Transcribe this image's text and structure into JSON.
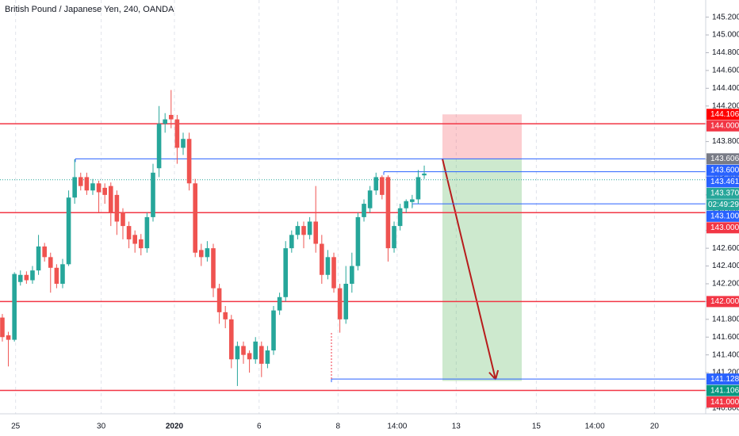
{
  "chart_data": {
    "type": "candlestick",
    "title": "British Pound / Japanese Yen, 240, OANDA",
    "up_color": "#26a69a",
    "down_color": "#ef5350",
    "x": [
      0,
      1,
      2,
      3,
      4,
      5,
      6,
      7,
      8,
      9,
      10,
      11,
      12,
      13,
      14,
      15,
      16,
      17,
      18,
      19,
      20,
      21,
      22,
      23,
      24,
      25,
      26,
      27,
      28,
      29,
      30,
      31,
      32,
      33,
      34,
      35,
      36,
      37,
      38,
      39,
      40,
      41,
      42,
      43,
      44,
      45,
      46,
      47,
      48,
      49,
      50,
      51,
      52,
      53,
      54,
      55,
      56,
      57,
      58,
      59,
      60,
      61,
      62,
      63,
      64,
      65,
      66,
      67,
      68,
      69,
      70
    ],
    "open": [
      141.82,
      141.62,
      141.57,
      142.22,
      142.3,
      142.24,
      142.35,
      142.62,
      142.5,
      142.38,
      142.2,
      142.42,
      143.17,
      143.4,
      143.4,
      143.25,
      143.33,
      143.28,
      143.3,
      143.2,
      143.0,
      142.85,
      142.75,
      142.7,
      142.6,
      142.95,
      143.5,
      144.0,
      144.1,
      144.05,
      143.73,
      143.83,
      143.33,
      142.58,
      142.5,
      142.6,
      142.15,
      141.88,
      141.8,
      141.35,
      141.5,
      141.42,
      141.35,
      141.5,
      141.3,
      141.45,
      141.9,
      142.05,
      142.6,
      142.75,
      142.85,
      142.75,
      142.9,
      142.65,
      142.3,
      142.5,
      142.15,
      141.8,
      142.2,
      142.4,
      142.95,
      143.05,
      143.25,
      143.4,
      143.4,
      142.6,
      142.85,
      143.05,
      143.12,
      143.15,
      143.42
    ],
    "high": [
      141.86,
      141.66,
      142.33,
      142.35,
      142.34,
      142.4,
      142.75,
      142.66,
      142.55,
      142.42,
      142.48,
      143.25,
      143.6,
      143.45,
      143.45,
      143.38,
      143.36,
      143.33,
      143.34,
      143.25,
      143.05,
      142.9,
      142.8,
      142.76,
      143.0,
      143.55,
      144.2,
      144.12,
      144.38,
      144.1,
      143.9,
      143.9,
      143.38,
      142.65,
      142.68,
      142.65,
      142.2,
      141.95,
      141.85,
      141.55,
      141.55,
      141.45,
      141.6,
      141.55,
      141.5,
      141.95,
      142.1,
      142.68,
      142.8,
      142.9,
      142.9,
      142.95,
      143.3,
      142.75,
      142.58,
      142.55,
      142.2,
      142.4,
      142.55,
      143.0,
      143.15,
      143.3,
      143.45,
      143.42,
      143.42,
      142.9,
      143.1,
      143.15,
      143.2,
      143.48,
      143.53
    ],
    "low": [
      141.55,
      141.27,
      141.55,
      142.18,
      142.2,
      142.2,
      142.3,
      142.45,
      142.1,
      142.15,
      142.15,
      142.4,
      143.1,
      143.25,
      143.2,
      143.2,
      143.0,
      143.1,
      142.85,
      142.75,
      142.7,
      142.6,
      142.55,
      142.52,
      142.55,
      142.9,
      143.4,
      143.9,
      143.95,
      143.55,
      143.65,
      143.25,
      142.5,
      142.4,
      142.45,
      142.05,
      141.75,
      141.7,
      141.25,
      141.05,
      141.3,
      141.2,
      141.3,
      141.15,
      141.25,
      141.4,
      141.85,
      142.0,
      142.55,
      142.7,
      142.6,
      142.7,
      142.55,
      142.2,
      142.25,
      142.1,
      141.65,
      141.75,
      142.1,
      142.35,
      142.9,
      143.0,
      143.2,
      143.15,
      142.45,
      142.55,
      142.8,
      143.0,
      143.05,
      143.1,
      143.38
    ],
    "close": [
      141.6,
      141.57,
      142.31,
      142.3,
      142.24,
      142.35,
      142.62,
      142.5,
      142.38,
      142.2,
      142.42,
      143.17,
      143.4,
      143.3,
      143.25,
      143.33,
      143.23,
      143.2,
      143.0,
      142.9,
      142.85,
      142.7,
      142.65,
      142.6,
      142.95,
      143.45,
      144.0,
      144.05,
      144.05,
      143.73,
      143.83,
      143.33,
      142.55,
      142.5,
      142.6,
      142.15,
      141.88,
      141.8,
      141.35,
      141.5,
      141.4,
      141.35,
      141.55,
      141.3,
      141.45,
      141.9,
      142.05,
      142.6,
      142.75,
      142.85,
      142.75,
      142.9,
      142.65,
      142.3,
      142.5,
      142.15,
      141.8,
      142.2,
      142.4,
      142.95,
      143.1,
      143.25,
      143.4,
      143.2,
      142.6,
      142.85,
      143.05,
      143.13,
      143.15,
      143.4,
      143.44
    ],
    "xlim": [
      -0.39,
      116.7
    ],
    "xticks": [
      {
        "value": 2.2,
        "label": "25"
      },
      {
        "value": 16.4,
        "label": "30"
      },
      {
        "value": 28.55,
        "label": "2020"
      },
      {
        "value": 42.6,
        "label": "6"
      },
      {
        "value": 55.7,
        "label": "8"
      },
      {
        "value": 65.5,
        "label": "14:00"
      },
      {
        "value": 75.3,
        "label": "13"
      },
      {
        "value": 88.6,
        "label": "15"
      },
      {
        "value": 98.3,
        "label": "14:00"
      },
      {
        "value": 108.2,
        "label": "20"
      }
    ],
    "ylim": [
      140.737,
      145.393
    ],
    "yticks": [
      {
        "value": 140.8,
        "label": "140.800"
      },
      {
        "value": 141,
        "label": "141.000"
      },
      {
        "value": 141.2,
        "label": "141.200"
      },
      {
        "value": 141.4,
        "label": "141.400"
      },
      {
        "value": 141.6,
        "label": "141.600"
      },
      {
        "value": 141.8,
        "label": "141.800"
      },
      {
        "value": 142,
        "label": "142.000"
      },
      {
        "value": 142.2,
        "label": "142.200"
      },
      {
        "value": 142.4,
        "label": "142.400"
      },
      {
        "value": 142.6,
        "label": "142.600"
      },
      {
        "value": 142.8,
        "label": "142.800"
      },
      {
        "value": 143,
        "label": "143.000"
      },
      {
        "value": 143.2,
        "label": "143.200"
      },
      {
        "value": 143.4,
        "label": "143.400"
      },
      {
        "value": 143.6,
        "label": "143.600"
      },
      {
        "value": 143.8,
        "label": "143.800"
      },
      {
        "value": 144,
        "label": "144.000"
      },
      {
        "value": 144.2,
        "label": "144.200"
      },
      {
        "value": 144.4,
        "label": "144.400"
      },
      {
        "value": 144.6,
        "label": "144.600"
      },
      {
        "value": 144.8,
        "label": "144.800"
      },
      {
        "value": 145,
        "label": "145.000"
      },
      {
        "value": 145.2,
        "label": "145.200"
      }
    ],
    "grid": "x",
    "levels": [
      {
        "value": 144.106,
        "label": "144.106",
        "color": "#ff0000",
        "line": "none"
      },
      {
        "value": 144,
        "label": "144.000",
        "color": "#f23645",
        "line": "solid"
      },
      {
        "value": 143.606,
        "label": "143.606",
        "color": "#787b86",
        "line": "blue"
      },
      {
        "value": 143.6,
        "label": "143.600",
        "color": "#2962ff",
        "line": "none"
      },
      {
        "value": 143.461,
        "label": "143.461",
        "color": "#2962ff",
        "line": "blue"
      },
      {
        "value": 143.37,
        "label": "143.370",
        "color": "#26a69a",
        "line": "dotted"
      },
      {
        "value": 143.1,
        "label": "143.100",
        "color": "#2962ff",
        "line": "blue"
      },
      {
        "value": 143,
        "label": "143.000",
        "color": "#f23645",
        "line": "solid"
      },
      {
        "value": 142,
        "label": "142.000",
        "color": "#f23645",
        "line": "solid"
      },
      {
        "value": 141.128,
        "label": "141.128",
        "color": "#2962ff",
        "line": "blue"
      },
      {
        "value": 141.106,
        "label": "141.106",
        "color": "#089981",
        "line": "none"
      },
      {
        "value": 141,
        "label": "141.000",
        "color": "#f23645",
        "line": "solid"
      }
    ],
    "countdown": "02:49:29",
    "position": {
      "entry": 143.606,
      "stop": 144.106,
      "target": 141.106
    }
  }
}
